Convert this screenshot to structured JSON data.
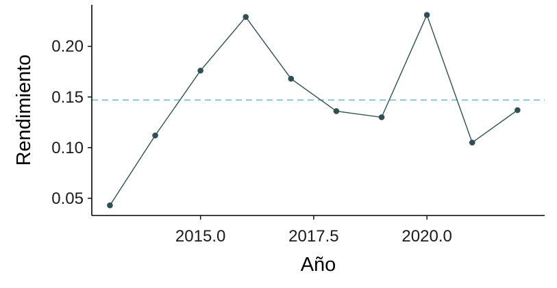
{
  "chart_data": {
    "type": "line",
    "title": "",
    "xlabel": "Año",
    "ylabel": "Rendimiento",
    "xlim": [
      2012.6,
      2022.6
    ],
    "ylim": [
      0.033,
      0.241
    ],
    "x_ticks": [
      2015.0,
      2017.5,
      2020.0
    ],
    "x_tick_labels": [
      "2015.0",
      "2017.5",
      "2020.0"
    ],
    "y_ticks": [
      0.05,
      0.1,
      0.15,
      0.2
    ],
    "y_tick_labels": [
      "0.05",
      "0.10",
      "0.15",
      "0.20"
    ],
    "grid": false,
    "series": [
      {
        "x": [
          2013,
          2014,
          2015,
          2016,
          2017,
          2018,
          2019,
          2020,
          2021,
          2022
        ],
        "y": [
          0.043,
          0.112,
          0.176,
          0.229,
          0.168,
          0.136,
          0.13,
          0.231,
          0.105,
          0.137
        ]
      }
    ],
    "reference_line": {
      "orientation": "horizontal",
      "y": 0.147,
      "style": "dashed"
    },
    "colors": {
      "line": "#2f4f54",
      "point": "#2f4f54",
      "reference": "#8cc4d8",
      "axis": "#000000"
    }
  }
}
